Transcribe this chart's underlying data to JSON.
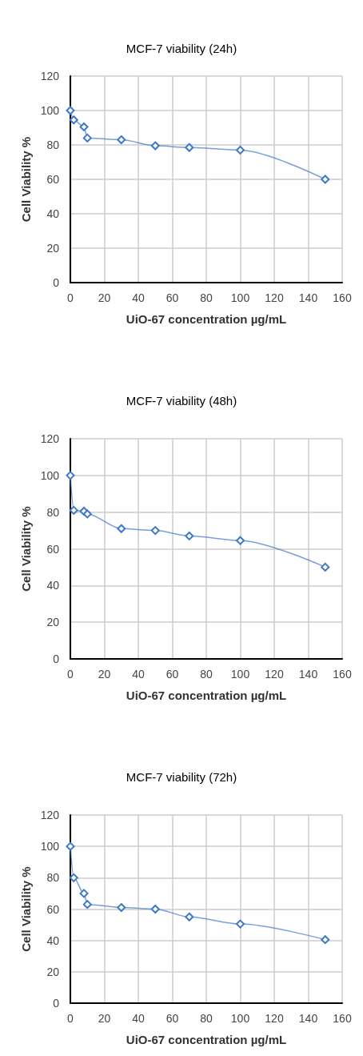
{
  "chart_data": [
    {
      "type": "line",
      "title": "MCF-7 viability (24h)",
      "xlabel": "UiO-67 concentration µg/mL",
      "ylabel": "Cell Viability %",
      "x": [
        0,
        2,
        8,
        10,
        30,
        50,
        70,
        100,
        150
      ],
      "series": [
        {
          "color": "#3d78c8",
          "values": [
            100,
            94.5,
            90.5,
            84,
            83,
            79.5,
            78.5,
            77,
            60
          ]
        }
      ],
      "xlim": [
        0,
        160
      ],
      "xticks": [
        0,
        20,
        40,
        60,
        80,
        100,
        120,
        140,
        160
      ],
      "ylim": [
        0,
        120
      ],
      "yticks": [
        0,
        20,
        40,
        60,
        80,
        100,
        120
      ],
      "grid": true,
      "marker": "diamond",
      "line_style": "solid"
    },
    {
      "type": "line",
      "title": "MCF-7 viability (48h)",
      "xlabel": "UiO-67 concentration µg/mL",
      "ylabel": "Cell Viability %",
      "x": [
        0,
        2,
        8,
        10,
        30,
        50,
        70,
        100,
        150
      ],
      "series": [
        {
          "color": "#3d78c8",
          "values": [
            100,
            81,
            80.5,
            79,
            71,
            70,
            67,
            64.5,
            50
          ]
        }
      ],
      "xlim": [
        0,
        160
      ],
      "xticks": [
        0,
        20,
        40,
        60,
        80,
        100,
        120,
        140,
        160
      ],
      "ylim": [
        0,
        120
      ],
      "yticks": [
        0,
        20,
        40,
        60,
        80,
        100,
        120
      ],
      "grid": true,
      "marker": "diamond",
      "line_style": "solid"
    },
    {
      "type": "line",
      "title": "MCF-7 viability (72h)",
      "xlabel": "UiO-67 concentration µg/mL",
      "ylabel": "Cell Viability %",
      "x": [
        0,
        2,
        8,
        10,
        30,
        50,
        70,
        100,
        150
      ],
      "series": [
        {
          "color": "#3d78c8",
          "values": [
            100,
            80,
            70,
            63,
            61,
            60,
            55,
            50.5,
            40.5
          ]
        }
      ],
      "xlim": [
        0,
        160
      ],
      "xticks": [
        0,
        20,
        40,
        60,
        80,
        100,
        120,
        140,
        160
      ],
      "ylim": [
        0,
        120
      ],
      "yticks": [
        0,
        20,
        40,
        60,
        80,
        100,
        120
      ],
      "grid": true,
      "marker": "diamond",
      "line_style": "solid"
    }
  ]
}
